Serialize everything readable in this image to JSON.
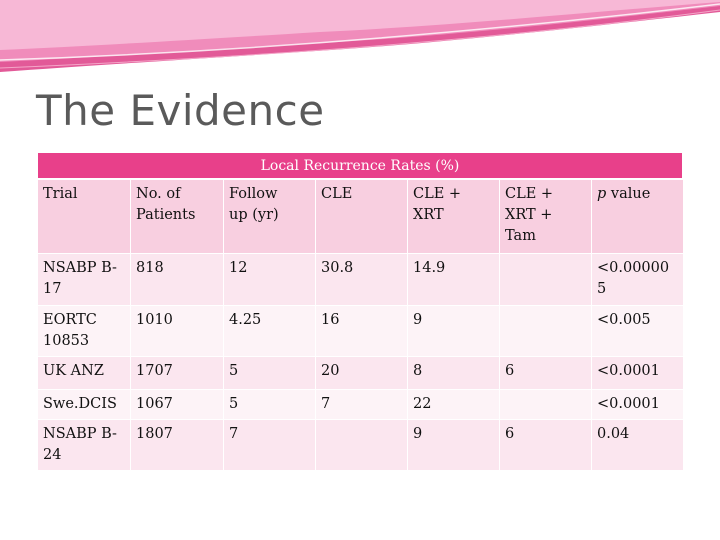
{
  "slide": {
    "title": "The Evidence"
  },
  "table": {
    "caption": "Local Recurrence Rates (%)",
    "headers": [
      [
        "Trial"
      ],
      [
        "No. of",
        "Patients"
      ],
      [
        "Follow",
        "up (yr)"
      ],
      [
        "CLE"
      ],
      [
        "CLE +",
        "XRT"
      ],
      [
        "CLE +",
        "XRT +",
        "Tam"
      ],
      [
        "p value"
      ]
    ],
    "rows": [
      [
        [
          "NSABP B-",
          "17"
        ],
        [
          "818"
        ],
        [
          "12"
        ],
        [
          "30.8"
        ],
        [
          "14.9"
        ],
        [
          ""
        ],
        [
          "<0.00000",
          "5"
        ]
      ],
      [
        [
          "EORTC",
          "10853"
        ],
        [
          "1010"
        ],
        [
          "4.25"
        ],
        [
          "16"
        ],
        [
          "9"
        ],
        [
          ""
        ],
        [
          "<0.005"
        ]
      ],
      [
        [
          "UK ANZ"
        ],
        [
          "1707"
        ],
        [
          "5"
        ],
        [
          "20"
        ],
        [
          "8"
        ],
        [
          "6"
        ],
        [
          "<0.0001"
        ]
      ],
      [
        [
          "Swe.DCIS"
        ],
        [
          "1067"
        ],
        [
          "5"
        ],
        [
          "7"
        ],
        [
          "22"
        ],
        [
          ""
        ],
        [
          "<0.0001"
        ]
      ],
      [
        [
          "NSABP B-",
          "24"
        ],
        [
          "1807"
        ],
        [
          "7"
        ],
        [
          ""
        ],
        [
          "9"
        ],
        [
          "6"
        ],
        [
          "0.04"
        ]
      ]
    ]
  }
}
